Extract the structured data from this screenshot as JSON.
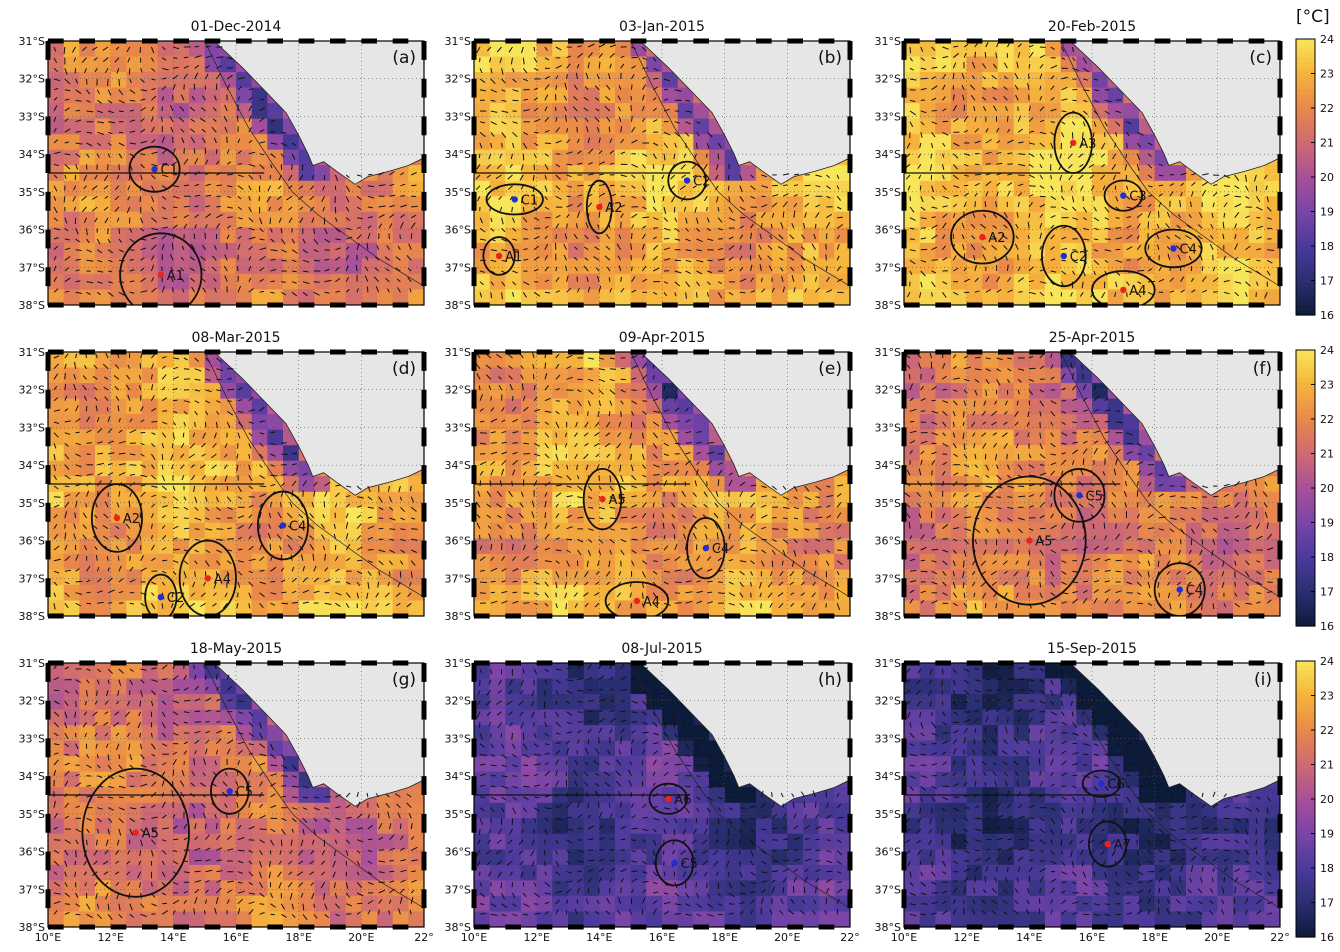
{
  "figure": {
    "unit_label": "[°C]",
    "colorbar": {
      "min": 16,
      "max": 24,
      "ticks": [
        "16",
        "17",
        "18",
        "19",
        "20",
        "21",
        "22",
        "23",
        "24"
      ],
      "colors": [
        "#0d1b3a",
        "#2a2f72",
        "#4c3a9c",
        "#7a45a8",
        "#a8509a",
        "#cf6a73",
        "#e9884a",
        "#f6b33c",
        "#f8e65a"
      ]
    },
    "lon_ticks": [
      "10°E",
      "12°E",
      "14°E",
      "16°E",
      "18°E",
      "20°E",
      "22°"
    ],
    "lat_ticks": [
      "31°S",
      "32°S",
      "33°S",
      "34°S",
      "35°S",
      "36°S",
      "37°S",
      "38°S"
    ],
    "lon_range": [
      10,
      22
    ],
    "lat_range": [
      -38,
      -31
    ],
    "transect_lat": -34.5,
    "land_color": "#e6e6e6",
    "marker_colors": {
      "anticyclone": "#e8241c",
      "cyclone": "#1f2fd6"
    }
  },
  "panels": [
    {
      "date": "01-Dec-2014",
      "letter": "(a)",
      "mean_temp": 21.6,
      "eddies": [
        {
          "name": "C1",
          "type": "cyclone",
          "lon": 13.4,
          "lat": -34.4,
          "rx": 0.8,
          "ry": 0.6
        },
        {
          "name": "A1",
          "type": "anticyclone",
          "lon": 13.6,
          "lat": -37.2,
          "rx": 1.3,
          "ry": 1.1
        }
      ]
    },
    {
      "date": "03-Jan-2015",
      "letter": "(b)",
      "mean_temp": 22.8,
      "eddies": [
        {
          "name": "C2",
          "type": "cyclone",
          "lon": 16.8,
          "lat": -34.7,
          "rx": 0.6,
          "ry": 0.5
        },
        {
          "name": "C1",
          "type": "cyclone",
          "lon": 11.3,
          "lat": -35.2,
          "rx": 0.9,
          "ry": 0.4
        },
        {
          "name": "A2",
          "type": "anticyclone",
          "lon": 14.0,
          "lat": -35.4,
          "rx": 0.4,
          "ry": 0.7
        },
        {
          "name": "A1",
          "type": "anticyclone",
          "lon": 10.8,
          "lat": -36.7,
          "rx": 0.5,
          "ry": 0.5
        }
      ]
    },
    {
      "date": "20-Feb-2015",
      "letter": "(c)",
      "mean_temp": 23.2,
      "eddies": [
        {
          "name": "A3",
          "type": "anticyclone",
          "lon": 15.4,
          "lat": -33.7,
          "rx": 0.6,
          "ry": 0.8
        },
        {
          "name": "C3",
          "type": "cyclone",
          "lon": 17.0,
          "lat": -35.1,
          "rx": 0.6,
          "ry": 0.4
        },
        {
          "name": "A2",
          "type": "anticyclone",
          "lon": 12.5,
          "lat": -36.2,
          "rx": 1.0,
          "ry": 0.7
        },
        {
          "name": "C2",
          "type": "cyclone",
          "lon": 15.1,
          "lat": -36.7,
          "rx": 0.7,
          "ry": 0.8
        },
        {
          "name": "C4",
          "type": "cyclone",
          "lon": 18.6,
          "lat": -36.5,
          "rx": 0.9,
          "ry": 0.5
        },
        {
          "name": "A4",
          "type": "anticyclone",
          "lon": 17.0,
          "lat": -37.6,
          "rx": 1.0,
          "ry": 0.5
        }
      ]
    },
    {
      "date": "08-Mar-2015",
      "letter": "(d)",
      "mean_temp": 22.8,
      "eddies": [
        {
          "name": "A2",
          "type": "anticyclone",
          "lon": 12.2,
          "lat": -35.4,
          "rx": 0.8,
          "ry": 0.9
        },
        {
          "name": "C4",
          "type": "cyclone",
          "lon": 17.5,
          "lat": -35.6,
          "rx": 0.8,
          "ry": 0.9
        },
        {
          "name": "C2",
          "type": "cyclone",
          "lon": 13.6,
          "lat": -37.5,
          "rx": 0.5,
          "ry": 0.6
        },
        {
          "name": "A4",
          "type": "anticyclone",
          "lon": 15.1,
          "lat": -37.0,
          "rx": 0.9,
          "ry": 1.0
        }
      ]
    },
    {
      "date": "09-Apr-2015",
      "letter": "(e)",
      "mean_temp": 22.6,
      "eddies": [
        {
          "name": "A5",
          "type": "anticyclone",
          "lon": 14.1,
          "lat": -34.9,
          "rx": 0.6,
          "ry": 0.8
        },
        {
          "name": "C4",
          "type": "cyclone",
          "lon": 17.4,
          "lat": -36.2,
          "rx": 0.6,
          "ry": 0.8
        },
        {
          "name": "A4",
          "type": "anticyclone",
          "lon": 15.2,
          "lat": -37.6,
          "rx": 1.0,
          "ry": 0.5
        }
      ]
    },
    {
      "date": "25-Apr-2015",
      "letter": "(f)",
      "mean_temp": 21.8,
      "eddies": [
        {
          "name": "C5",
          "type": "cyclone",
          "lon": 15.6,
          "lat": -34.8,
          "rx": 0.8,
          "ry": 0.7
        },
        {
          "name": "A5",
          "type": "anticyclone",
          "lon": 14.0,
          "lat": -36.0,
          "rx": 1.8,
          "ry": 1.7
        },
        {
          "name": "C4",
          "type": "cyclone",
          "lon": 18.8,
          "lat": -37.3,
          "rx": 0.8,
          "ry": 0.7
        }
      ]
    },
    {
      "date": "18-May-2015",
      "letter": "(g)",
      "mean_temp": 21.4,
      "eddies": [
        {
          "name": "C5",
          "type": "cyclone",
          "lon": 15.8,
          "lat": -34.4,
          "rx": 0.6,
          "ry": 0.6
        },
        {
          "name": "A5",
          "type": "anticyclone",
          "lon": 12.8,
          "lat": -35.5,
          "rx": 1.7,
          "ry": 1.7
        }
      ]
    },
    {
      "date": "08-Jul-2015",
      "letter": "(h)",
      "mean_temp": 18.0,
      "eddies": [
        {
          "name": "A6",
          "type": "anticyclone",
          "lon": 16.2,
          "lat": -34.6,
          "rx": 0.6,
          "ry": 0.4
        },
        {
          "name": "C5",
          "type": "cyclone",
          "lon": 16.4,
          "lat": -36.3,
          "rx": 0.6,
          "ry": 0.6
        }
      ]
    },
    {
      "date": "15-Sep-2015",
      "letter": "(i)",
      "mean_temp": 17.6,
      "eddies": [
        {
          "name": "C6",
          "type": "cyclone",
          "lon": 16.3,
          "lat": -34.2,
          "rx": 0.6,
          "ry": 0.35
        },
        {
          "name": "A7",
          "type": "anticyclone",
          "lon": 16.5,
          "lat": -35.8,
          "rx": 0.6,
          "ry": 0.6
        }
      ]
    }
  ]
}
